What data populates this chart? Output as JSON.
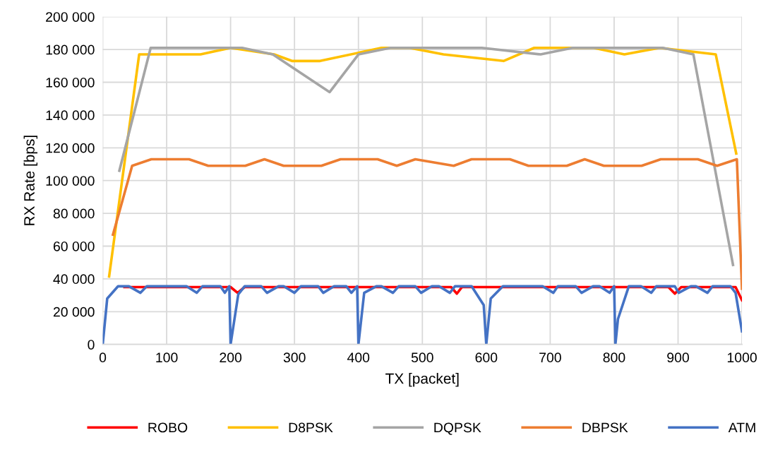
{
  "chart_data": {
    "type": "line",
    "xlabel": "TX [packet]",
    "ylabel": "RX Rate [bps]",
    "xlim": [
      0,
      1000
    ],
    "xticks": [
      0,
      100,
      200,
      300,
      400,
      500,
      600,
      700,
      800,
      900,
      1000
    ],
    "ylim": [
      0,
      200000
    ],
    "yticks": [
      {
        "value": 0,
        "label": "0"
      },
      {
        "value": 20000,
        "label": "20 000"
      },
      {
        "value": 40000,
        "label": "40 000"
      },
      {
        "value": 60000,
        "label": "60 000"
      },
      {
        "value": 80000,
        "label": "80 000"
      },
      {
        "value": 100000,
        "label": "100 000"
      },
      {
        "value": 120000,
        "label": "120 000"
      },
      {
        "value": 140000,
        "label": "140 000"
      },
      {
        "value": 160000,
        "label": "160 000"
      },
      {
        "value": 180000,
        "label": "180 000"
      },
      {
        "value": 200000,
        "label": "200 000"
      }
    ],
    "grid": true,
    "legend": "bottom",
    "marker": "none",
    "line_style": "solid",
    "series": [
      {
        "name": "ROBO",
        "color": "#ff0000",
        "x": [
          34,
          200,
          211,
          222,
          545,
          554,
          562,
          885,
          895,
          905,
          990,
          1000
        ],
        "values": [
          35000,
          35000,
          31500,
          35000,
          35000,
          31000,
          35000,
          35000,
          31000,
          35000,
          35000,
          27000
        ]
      },
      {
        "name": "D8PSK",
        "color": "#ffc000",
        "x": [
          10,
          57,
          153,
          200,
          268,
          296,
          340,
          436,
          480,
          533,
          627,
          675,
          768,
          816,
          871,
          959,
          991
        ],
        "values": [
          41500,
          177000,
          177000,
          181000,
          177000,
          173000,
          173000,
          181000,
          181000,
          177000,
          173000,
          181000,
          181000,
          177000,
          181000,
          177000,
          116500
        ]
      },
      {
        "name": "DQPSK",
        "color": "#a5a5a5",
        "x": [
          26,
          75,
          218,
          266,
          355,
          400,
          450,
          593,
          685,
          735,
          876,
          924,
          986
        ],
        "values": [
          106000,
          181000,
          181000,
          177000,
          154000,
          177000,
          181000,
          181000,
          177000,
          181000,
          181000,
          177000,
          48500
        ]
      },
      {
        "name": "DBPSK",
        "color": "#ed7d31",
        "x": [
          16,
          46,
          76,
          135,
          165,
          223,
          253,
          283,
          342,
          372,
          430,
          460,
          489,
          549,
          577,
          637,
          666,
          726,
          754,
          784,
          843,
          873,
          931,
          961,
          992,
          1000
        ],
        "values": [
          67000,
          109000,
          113000,
          113000,
          109000,
          109000,
          113000,
          109000,
          109000,
          113000,
          113000,
          109000,
          113000,
          109000,
          113000,
          113000,
          109000,
          109000,
          113000,
          109000,
          109000,
          113000,
          113000,
          109000,
          113000,
          34000
        ]
      },
      {
        "name": "ATM",
        "color": "#4472c4",
        "x": [
          0,
          7,
          24,
          41,
          59,
          69,
          131,
          147,
          156,
          184,
          191,
          198,
          200,
          212,
          222,
          248,
          257,
          275,
          283,
          300,
          310,
          337,
          345,
          362,
          381,
          389,
          398,
          400,
          409,
          428,
          436,
          454,
          463,
          489,
          498,
          515,
          526,
          543,
          551,
          577,
          596,
          600,
          607,
          626,
          688,
          705,
          712,
          740,
          749,
          767,
          777,
          793,
          800,
          802,
          806,
          823,
          842,
          858,
          866,
          895,
          901,
          920,
          928,
          946,
          954,
          982,
          990,
          1000
        ],
        "values": [
          0,
          28000,
          35500,
          35500,
          31500,
          35500,
          35500,
          31500,
          35500,
          35500,
          31500,
          35500,
          0,
          30500,
          35500,
          35500,
          31500,
          35500,
          35500,
          31500,
          35500,
          35500,
          31500,
          35500,
          35500,
          31500,
          35500,
          0,
          31500,
          35500,
          35500,
          31500,
          35500,
          35500,
          31500,
          35500,
          35500,
          31500,
          35500,
          35500,
          24000,
          0,
          28000,
          35500,
          35500,
          31500,
          35500,
          35500,
          31500,
          35500,
          35500,
          31500,
          35500,
          0,
          15500,
          35500,
          35500,
          31500,
          35500,
          35500,
          31500,
          35500,
          35500,
          31500,
          35500,
          35500,
          31500,
          8000
        ]
      }
    ]
  }
}
